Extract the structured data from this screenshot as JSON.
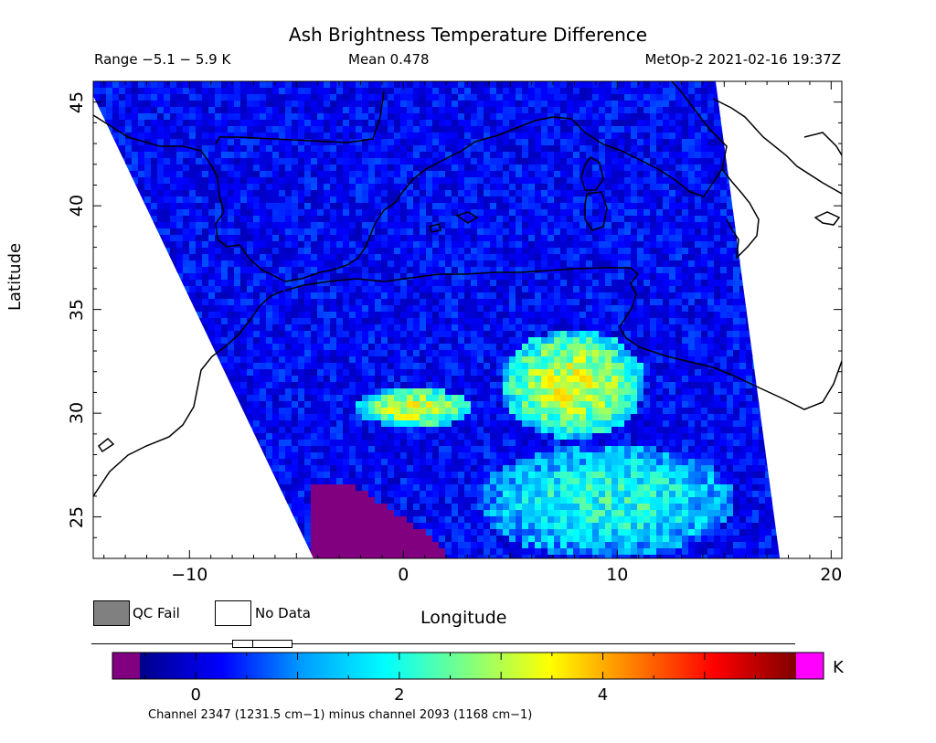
{
  "header": {
    "title": "Ash Brightness Temperature Difference",
    "range": "Range −5.1 − 5.9 K",
    "mean": "Mean 0.478",
    "satellite": "MetOp-2 2021-02-16 19:37Z"
  },
  "map": {
    "x_label": "Longitude",
    "y_label": "Latitude",
    "lon_range": [
      -14.5,
      20.5
    ],
    "lat_range": [
      23,
      46
    ],
    "x_ticks": [
      -10,
      0,
      10,
      20
    ],
    "x_tick_labels": [
      "−10",
      "0",
      "10",
      "20"
    ],
    "y_ticks": [
      25,
      30,
      35,
      40,
      45
    ],
    "y_tick_labels": [
      "25",
      "30",
      "35",
      "40",
      "45"
    ],
    "swath_corners": [
      [
        -14.5,
        45.3
      ],
      [
        -14.5,
        46
      ],
      [
        14.6,
        46
      ],
      [
        17.6,
        23
      ],
      [
        -4.2,
        23
      ]
    ],
    "features": [
      {
        "name": "background",
        "value": 0.2
      },
      {
        "name": "ash-band-west",
        "lon": [
          -2.2,
          3.2
        ],
        "lat": [
          29.3,
          31.2
        ],
        "value": 3.3
      },
      {
        "name": "ash-plume-central",
        "lon": [
          4.5,
          11.3
        ],
        "lat": [
          28.8,
          34.0
        ],
        "value": 3.2
      },
      {
        "name": "ash-south-cluster",
        "lon": [
          3.5,
          15.5
        ],
        "lat": [
          23.0,
          28.5
        ],
        "value": 2.0
      },
      {
        "name": "qc-low-region",
        "lon": [
          -4.2,
          2.0
        ],
        "lat": [
          23.0,
          26.5
        ],
        "value": -1.5
      }
    ]
  },
  "legend": {
    "qc_fail": "QC Fail",
    "no_data": "No Data",
    "qc_fail_color": "#808080",
    "no_data_color": "#ffffff"
  },
  "colorbar": {
    "unit": "K",
    "min": -0.55,
    "max": 5.9,
    "ticks": [
      0,
      2,
      4
    ],
    "tick_labels": [
      "0",
      "2",
      "4"
    ],
    "under_color": "#800080",
    "over_color": "#ff00ff",
    "stops": [
      "#00008b",
      "#0000ff",
      "#00a0ff",
      "#00ffff",
      "#80ff80",
      "#ffff00",
      "#ff8000",
      "#ff0000",
      "#800000"
    ]
  },
  "footnote": "Channel 2347 (1231.5 cm−1) minus channel 2093 (1168 cm−1)"
}
